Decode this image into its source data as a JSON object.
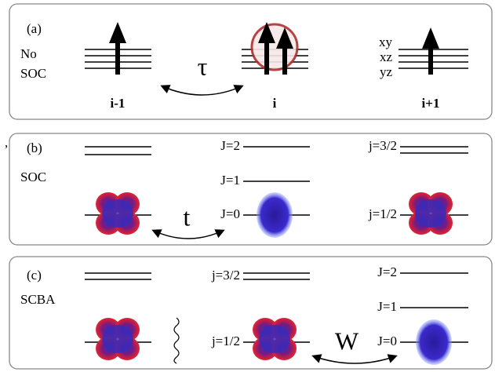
{
  "panels": [
    {
      "label": "(a)",
      "name_lines": [
        "No",
        "SOC"
      ],
      "hopping": "τ",
      "sites": [
        "i-1",
        "i",
        "i+1"
      ],
      "orbitals": [
        "xy",
        "xz",
        "yz"
      ]
    },
    {
      "label": "(b)",
      "name_lines": [
        "SOC"
      ],
      "hopping": "t",
      "levels_center": [
        "J=2",
        "J=1",
        "J=0"
      ],
      "levels_right": [
        "j=3/2",
        "j=1/2"
      ]
    },
    {
      "label": "(c)",
      "name_lines": [
        "SCBA"
      ],
      "hopping": "W",
      "levels_center": [
        "j=3/2",
        "j=1/2"
      ],
      "levels_right": [
        "J=2",
        "J=1",
        "J=0"
      ]
    }
  ],
  "stray_mark": ","
}
